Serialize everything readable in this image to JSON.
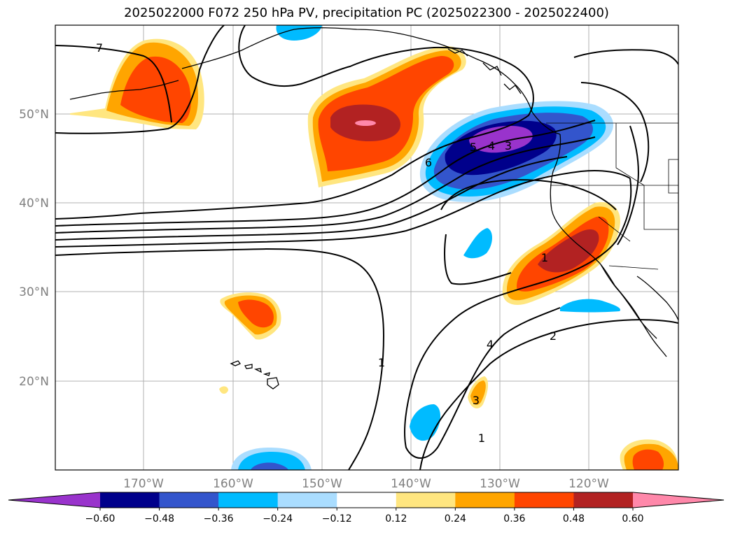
{
  "title": "2025022000 F072 250 hPa PV, precipitation PC (2025022300 - 2025022400)",
  "lon_labels": [
    "170°W",
    "160°W",
    "150°W",
    "140°W",
    "130°W",
    "120°W"
  ],
  "lat_labels": [
    "50°N",
    "40°N",
    "30°N",
    "20°N"
  ],
  "colorbar": {
    "colors": [
      "#9933cc",
      "#00008b",
      "#3355cc",
      "#00bbff",
      "#aaddff",
      "#ffffff",
      "#ffe680",
      "#ffa500",
      "#ff4500",
      "#b22222",
      "#ff88aa"
    ],
    "tick_labels": [
      "−0.60",
      "−0.48",
      "−0.36",
      "−0.24",
      "−0.12",
      "0.12",
      "0.24",
      "0.36",
      "0.48",
      "0.60"
    ]
  },
  "contour_labels": [
    "7",
    "6",
    "5",
    "4",
    "3",
    "1",
    "1",
    "2",
    "4",
    "3",
    "1"
  ]
}
